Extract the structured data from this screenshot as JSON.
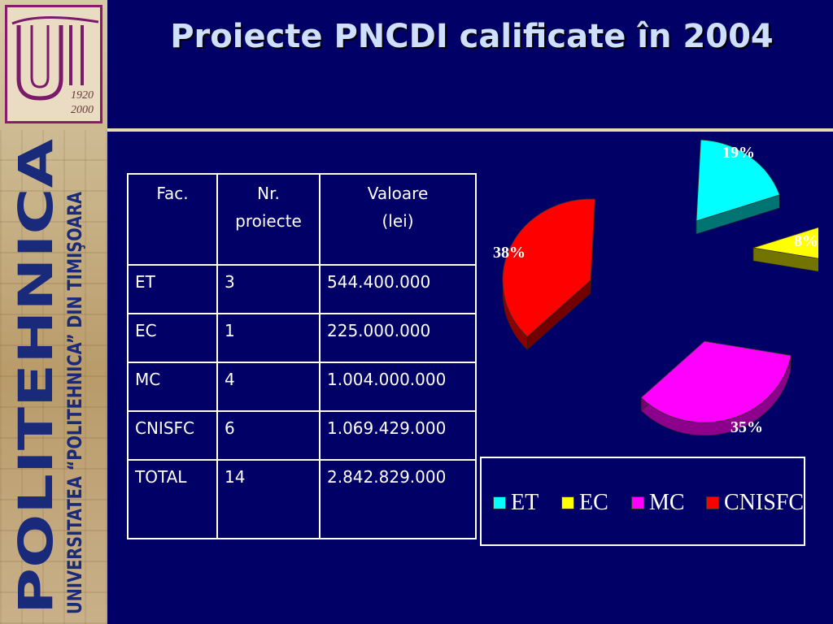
{
  "slide": {
    "title": "Proiecte PNCDI calificate în 2004"
  },
  "sidebar": {
    "logo_years": [
      "1920",
      "2000"
    ],
    "brand_text": "POLITEHNICA",
    "university_text": "UNIVERSITATEA “POLITEHNICA” DIN TIMIŞOARA"
  },
  "table": {
    "headers": [
      "Fac.",
      "Nr.",
      "proiecte",
      "Valoare",
      "(lei)"
    ],
    "rows": [
      [
        "ET",
        "3",
        "544.400.000"
      ],
      [
        "EC",
        "1",
        "225.000.000"
      ],
      [
        "MC",
        "4",
        "1.004.000.000"
      ],
      [
        "CNISFC",
        "6",
        "1.069.429.000"
      ],
      [
        "TOTAL",
        "14",
        "2.842.829.000"
      ]
    ]
  },
  "chart_data": {
    "type": "pie",
    "title": "",
    "categories": [
      "ET",
      "EC",
      "MC",
      "CNISFC"
    ],
    "values": [
      19,
      8,
      35,
      38
    ],
    "labels": [
      "19%",
      "8%",
      "35%",
      "38%"
    ],
    "colors": [
      "#00ffff",
      "#ffff00",
      "#ff00ff",
      "#ff0000"
    ],
    "style": "3d-exploded",
    "legend_position": "bottom"
  }
}
